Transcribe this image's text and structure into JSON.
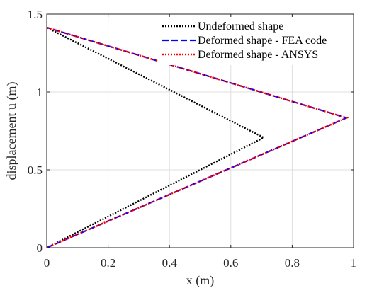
{
  "chart_data": {
    "type": "line",
    "title": "",
    "xlabel": "x (m)",
    "ylabel": "displacement u (m)",
    "xlim": [
      0,
      1
    ],
    "ylim": [
      0,
      1.5
    ],
    "xticks": [
      0,
      0.2,
      0.4,
      0.6,
      0.8,
      1
    ],
    "xtick_labels": [
      "0",
      "0.2",
      "0.4",
      "0.6",
      "0.8",
      "1"
    ],
    "yticks": [
      0,
      0.5,
      1,
      1.5
    ],
    "ytick_labels": [
      "0",
      "0.5",
      "1",
      "1.5"
    ],
    "grid": true,
    "legend_position": "top-right",
    "series": [
      {
        "name": "Undeformed shape",
        "color": "#000000",
        "style": "dotted",
        "x": [
          0,
          0.7071,
          0
        ],
        "y": [
          0,
          0.7071,
          1.4142
        ]
      },
      {
        "name": "Deformed shape - FEA code",
        "color": "#0000ff",
        "style": "dashed",
        "x": [
          0,
          0.977,
          0
        ],
        "y": [
          0,
          0.834,
          1.4142
        ]
      },
      {
        "name": "Deformed shape - ANSYS",
        "color": "#ff0000",
        "style": "dotted",
        "x": [
          0,
          0.977,
          0
        ],
        "y": [
          0,
          0.834,
          1.4142
        ]
      }
    ]
  }
}
